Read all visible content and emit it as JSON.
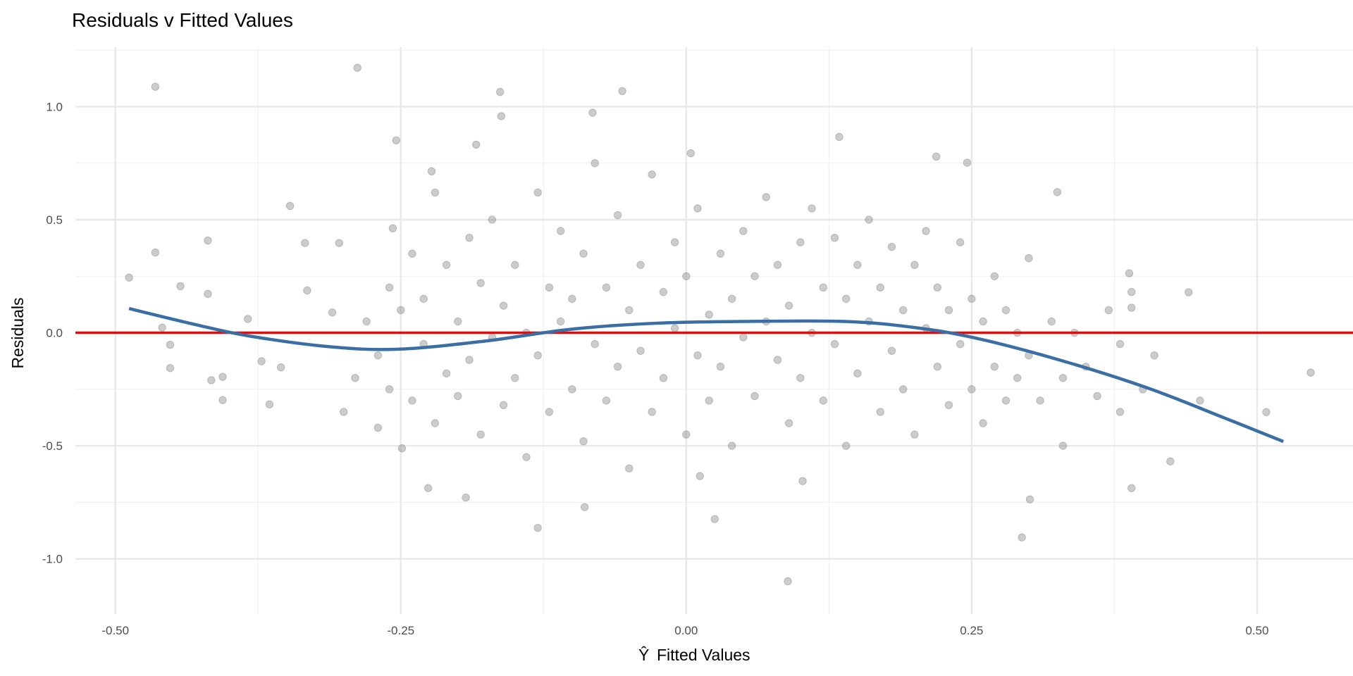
{
  "chart_data": {
    "type": "scatter",
    "title": "Residuals v Fitted Values",
    "xlabel": "Fitted Values",
    "xlabel_hat_symbol": "Ŷ",
    "ylabel": "Residuals",
    "xlim": [
      -0.535,
      0.584
    ],
    "ylim": [
      -1.244,
      1.263
    ],
    "grid": true,
    "x_ticks": [
      -0.5,
      -0.25,
      0.0,
      0.25,
      0.5
    ],
    "x_tick_labels": [
      "-0.50",
      "-0.25",
      "0.00",
      "0.25",
      "0.50"
    ],
    "y_ticks": [
      -1.0,
      -0.5,
      0.0,
      0.5,
      1.0
    ],
    "y_tick_labels": [
      "-1.0",
      "-0.5",
      "0.0",
      "0.5",
      "1.0"
    ],
    "reference_line": {
      "y": 0,
      "color": "#ff0000"
    },
    "smooth_curve": {
      "color": "#3a6ea5",
      "points": [
        [
          -0.488,
          0.107
        ],
        [
          -0.428,
          0.034
        ],
        [
          -0.382,
          -0.015
        ],
        [
          -0.314,
          -0.061
        ],
        [
          -0.254,
          -0.073
        ],
        [
          -0.178,
          -0.038
        ],
        [
          -0.102,
          0.015
        ],
        [
          -0.027,
          0.042
        ],
        [
          0.049,
          0.05
        ],
        [
          0.139,
          0.05
        ],
        [
          0.2,
          0.023
        ],
        [
          0.253,
          -0.023
        ],
        [
          0.328,
          -0.122
        ],
        [
          0.404,
          -0.244
        ],
        [
          0.472,
          -0.378
        ],
        [
          0.523,
          -0.481
        ]
      ]
    },
    "point_color": "#808080",
    "points": [
      [
        -0.488,
        0.244
      ],
      [
        -0.465,
        1.088
      ],
      [
        -0.465,
        0.355
      ],
      [
        -0.443,
        0.206
      ],
      [
        -0.459,
        0.023
      ],
      [
        -0.452,
        -0.053
      ],
      [
        -0.452,
        -0.156
      ],
      [
        -0.419,
        0.408
      ],
      [
        -0.419,
        0.172
      ],
      [
        -0.406,
        -0.195
      ],
      [
        -0.406,
        -0.298
      ],
      [
        -0.416,
        -0.21
      ],
      [
        -0.384,
        0.061
      ],
      [
        -0.372,
        -0.126
      ],
      [
        -0.365,
        -0.317
      ],
      [
        -0.347,
        0.561
      ],
      [
        -0.334,
        0.397
      ],
      [
        -0.332,
        0.187
      ],
      [
        -0.355,
        -0.153
      ],
      [
        -0.304,
        0.397
      ],
      [
        -0.288,
        1.172
      ],
      [
        -0.254,
        0.851
      ],
      [
        -0.257,
        0.462
      ],
      [
        -0.249,
        -0.511
      ],
      [
        -0.226,
        -0.687
      ],
      [
        -0.223,
        0.714
      ],
      [
        -0.193,
        -0.729
      ],
      [
        -0.184,
        0.832
      ],
      [
        -0.163,
        1.065
      ],
      [
        -0.162,
        0.958
      ],
      [
        -0.13,
        -0.863
      ],
      [
        -0.082,
        0.973
      ],
      [
        -0.089,
        -0.771
      ],
      [
        -0.056,
        1.069
      ],
      [
        0.004,
        0.794
      ],
      [
        0.025,
        -0.824
      ],
      [
        0.012,
        -0.634
      ],
      [
        0.089,
        -1.099
      ],
      [
        0.102,
        -0.656
      ],
      [
        0.134,
        0.866
      ],
      [
        0.219,
        0.779
      ],
      [
        0.246,
        0.752
      ],
      [
        0.325,
        0.622
      ],
      [
        0.294,
        -0.905
      ],
      [
        0.301,
        -0.737
      ],
      [
        0.388,
        0.263
      ],
      [
        0.39,
        0.111
      ],
      [
        0.39,
        -0.687
      ],
      [
        0.424,
        -0.569
      ],
      [
        0.44,
        0.179
      ],
      [
        0.547,
        -0.176
      ],
      [
        0.508,
        -0.351
      ],
      [
        -0.3,
        -0.35
      ],
      [
        -0.31,
        0.09
      ],
      [
        -0.29,
        -0.2
      ],
      [
        -0.28,
        0.05
      ],
      [
        -0.27,
        -0.1
      ],
      [
        -0.27,
        -0.42
      ],
      [
        -0.26,
        0.2
      ],
      [
        -0.26,
        -0.25
      ],
      [
        -0.25,
        0.1
      ],
      [
        -0.24,
        -0.3
      ],
      [
        -0.24,
        0.35
      ],
      [
        -0.23,
        -0.05
      ],
      [
        -0.23,
        0.15
      ],
      [
        -0.22,
        -0.4
      ],
      [
        -0.22,
        0.62
      ],
      [
        -0.21,
        0.3
      ],
      [
        -0.21,
        -0.18
      ],
      [
        -0.2,
        0.05
      ],
      [
        -0.2,
        -0.28
      ],
      [
        -0.19,
        0.42
      ],
      [
        -0.19,
        -0.12
      ],
      [
        -0.18,
        0.22
      ],
      [
        -0.18,
        -0.45
      ],
      [
        -0.17,
        -0.02
      ],
      [
        -0.17,
        0.5
      ],
      [
        -0.16,
        -0.32
      ],
      [
        -0.16,
        0.12
      ],
      [
        -0.15,
        -0.2
      ],
      [
        -0.15,
        0.3
      ],
      [
        -0.14,
        0.0
      ],
      [
        -0.14,
        -0.55
      ],
      [
        -0.13,
        0.62
      ],
      [
        -0.13,
        -0.1
      ],
      [
        -0.12,
        0.2
      ],
      [
        -0.12,
        -0.35
      ],
      [
        -0.11,
        0.45
      ],
      [
        -0.11,
        0.05
      ],
      [
        -0.1,
        -0.25
      ],
      [
        -0.1,
        0.15
      ],
      [
        -0.09,
        -0.48
      ],
      [
        -0.09,
        0.35
      ],
      [
        -0.08,
        -0.05
      ],
      [
        -0.08,
        0.75
      ],
      [
        -0.07,
        0.2
      ],
      [
        -0.07,
        -0.3
      ],
      [
        -0.06,
        0.52
      ],
      [
        -0.06,
        -0.15
      ],
      [
        -0.05,
        0.1
      ],
      [
        -0.05,
        -0.6
      ],
      [
        -0.04,
        0.3
      ],
      [
        -0.04,
        -0.08
      ],
      [
        -0.03,
        0.7
      ],
      [
        -0.03,
        -0.35
      ],
      [
        -0.02,
        0.18
      ],
      [
        -0.02,
        -0.2
      ],
      [
        -0.01,
        0.4
      ],
      [
        -0.01,
        0.02
      ],
      [
        0.0,
        -0.45
      ],
      [
        0.0,
        0.25
      ],
      [
        0.01,
        -0.1
      ],
      [
        0.01,
        0.55
      ],
      [
        0.02,
        0.08
      ],
      [
        0.02,
        -0.3
      ],
      [
        0.03,
        0.35
      ],
      [
        0.03,
        -0.15
      ],
      [
        0.04,
        0.15
      ],
      [
        0.04,
        -0.5
      ],
      [
        0.05,
        0.45
      ],
      [
        0.05,
        -0.02
      ],
      [
        0.06,
        0.25
      ],
      [
        0.06,
        -0.28
      ],
      [
        0.07,
        0.05
      ],
      [
        0.07,
        0.6
      ],
      [
        0.08,
        -0.12
      ],
      [
        0.08,
        0.3
      ],
      [
        0.09,
        -0.4
      ],
      [
        0.09,
        0.12
      ],
      [
        0.1,
        0.4
      ],
      [
        0.1,
        -0.2
      ],
      [
        0.11,
        0.0
      ],
      [
        0.11,
        0.55
      ],
      [
        0.12,
        -0.3
      ],
      [
        0.12,
        0.2
      ],
      [
        0.13,
        -0.05
      ],
      [
        0.13,
        0.42
      ],
      [
        0.14,
        -0.5
      ],
      [
        0.14,
        0.15
      ],
      [
        0.15,
        0.3
      ],
      [
        0.15,
        -0.18
      ],
      [
        0.16,
        0.05
      ],
      [
        0.16,
        0.5
      ],
      [
        0.17,
        -0.35
      ],
      [
        0.17,
        0.2
      ],
      [
        0.18,
        -0.08
      ],
      [
        0.18,
        0.38
      ],
      [
        0.19,
        0.1
      ],
      [
        0.19,
        -0.25
      ],
      [
        0.2,
        0.3
      ],
      [
        0.2,
        -0.45
      ],
      [
        0.21,
        0.02
      ],
      [
        0.21,
        0.45
      ],
      [
        0.22,
        -0.15
      ],
      [
        0.22,
        0.2
      ],
      [
        0.23,
        -0.32
      ],
      [
        0.23,
        0.1
      ],
      [
        0.24,
        0.4
      ],
      [
        0.24,
        -0.05
      ],
      [
        0.25,
        -0.25
      ],
      [
        0.25,
        0.15
      ],
      [
        0.26,
        -0.4
      ],
      [
        0.26,
        0.05
      ],
      [
        0.27,
        0.25
      ],
      [
        0.27,
        -0.15
      ],
      [
        0.28,
        -0.3
      ],
      [
        0.28,
        0.1
      ],
      [
        0.29,
        0.0
      ],
      [
        0.29,
        -0.2
      ],
      [
        0.3,
        0.33
      ],
      [
        0.3,
        -0.1
      ],
      [
        0.31,
        -0.3
      ],
      [
        0.32,
        0.05
      ],
      [
        0.33,
        -0.2
      ],
      [
        0.33,
        -0.5
      ],
      [
        0.34,
        0.0
      ],
      [
        0.35,
        -0.15
      ],
      [
        0.36,
        -0.28
      ],
      [
        0.37,
        0.1
      ],
      [
        0.38,
        -0.05
      ],
      [
        0.38,
        -0.35
      ],
      [
        0.39,
        0.18
      ],
      [
        0.4,
        -0.25
      ],
      [
        0.41,
        -0.1
      ],
      [
        0.45,
        -0.3
      ]
    ]
  }
}
